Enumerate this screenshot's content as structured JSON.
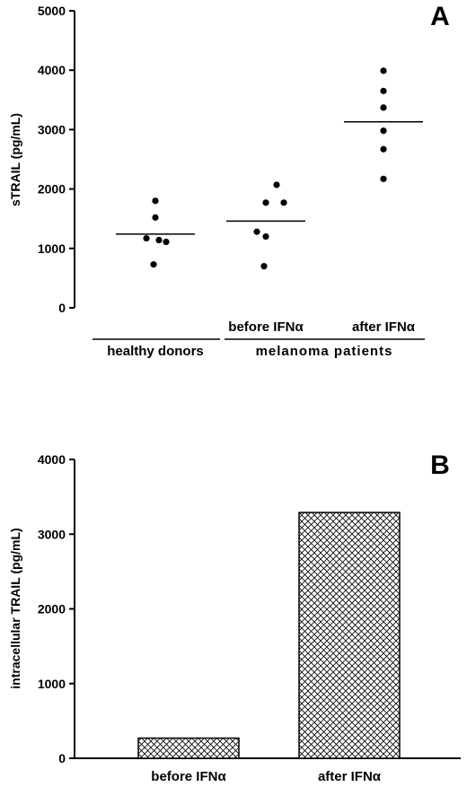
{
  "chart_data": [
    {
      "type": "scatter",
      "panel_label": "A",
      "ylabel": "sTRAIL (pg/mL)",
      "ylim": [
        0,
        5000
      ],
      "yticks": [
        0,
        1000,
        2000,
        3000,
        4000,
        5000
      ],
      "categories": [
        "healthy donors",
        "before IFNα",
        "after IFNα"
      ],
      "group_labels": [
        "healthy donors",
        "melanoma patients"
      ],
      "series": [
        {
          "category": "healthy donors",
          "values": [
            1800,
            1520,
            1170,
            1140,
            1110,
            730
          ],
          "mean": 1240
        },
        {
          "category": "before IFNα",
          "values": [
            2070,
            1770,
            1770,
            1280,
            1200,
            700
          ],
          "mean": 1460
        },
        {
          "category": "after IFNα",
          "values": [
            3990,
            3650,
            3370,
            2980,
            2670,
            2170
          ],
          "mean": 3130
        }
      ],
      "grid": false
    },
    {
      "type": "bar",
      "panel_label": "B",
      "ylabel": "intracellular TRAIL (pg/mL)",
      "ylim": [
        0,
        4000
      ],
      "yticks": [
        0,
        1000,
        2000,
        3000,
        4000
      ],
      "categories": [
        "before IFNα",
        "after IFNα"
      ],
      "values": [
        270,
        3290
      ],
      "fill": "crosshatch",
      "grid": false
    }
  ]
}
